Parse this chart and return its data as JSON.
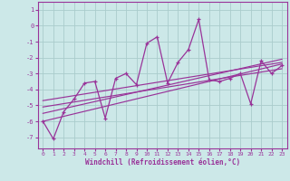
{
  "xlabel": "Windchill (Refroidissement éolien,°C)",
  "xlim": [
    -0.5,
    23.5
  ],
  "ylim": [
    -7.7,
    1.5
  ],
  "yticks": [
    1,
    0,
    -1,
    -2,
    -3,
    -4,
    -5,
    -6,
    -7
  ],
  "xticks": [
    0,
    1,
    2,
    3,
    4,
    5,
    6,
    7,
    8,
    9,
    10,
    11,
    12,
    13,
    14,
    15,
    16,
    17,
    18,
    19,
    20,
    21,
    22,
    23
  ],
  "bg_color": "#cce8e8",
  "grid_color": "#aacccc",
  "line_color": "#993399",
  "x": [
    0,
    1,
    2,
    3,
    4,
    5,
    6,
    7,
    8,
    9,
    10,
    11,
    12,
    13,
    14,
    15,
    16,
    17,
    18,
    19,
    20,
    21,
    22,
    23
  ],
  "y": [
    -6.0,
    -7.1,
    -5.4,
    -4.6,
    -3.6,
    -3.5,
    -5.8,
    -3.3,
    -3.0,
    -3.7,
    -1.1,
    -0.7,
    -3.6,
    -2.3,
    -1.5,
    0.4,
    -3.4,
    -3.5,
    -3.3,
    -3.0,
    -4.9,
    -2.2,
    -3.0,
    -2.5
  ],
  "regression_lines": [
    {
      "x0": 0,
      "y0": -6.0,
      "x1": 23,
      "y1": -2.4
    },
    {
      "x0": 0,
      "y0": -5.5,
      "x1": 23,
      "y1": -2.1
    },
    {
      "x0": 0,
      "y0": -5.1,
      "x1": 23,
      "y1": -2.7
    },
    {
      "x0": 0,
      "y0": -4.7,
      "x1": 23,
      "y1": -2.3
    }
  ]
}
